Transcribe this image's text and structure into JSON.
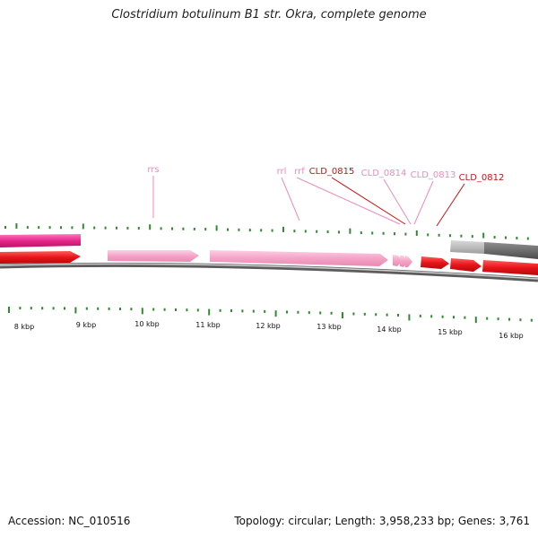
{
  "title": "Clostridium botulinum B1 str. Okra, complete genome",
  "footer": {
    "accession": "Accession: NC_010516",
    "summary": "Topology: circular; Length: 3,958,233 bp; Genes: 3,761"
  },
  "colors": {
    "tick": "#2e8b2e",
    "backbone": "#9a9a9a",
    "cds_red": "#e8141a",
    "rna_pink": "#f5a3c7",
    "gene_magenta": "#e8268a",
    "gray_feature": "#6d6d6d",
    "label_red": "#cc1111",
    "label_pink": "#f08aba"
  },
  "scale_labels": [
    "8 kbp",
    "9 kbp",
    "10 kbp",
    "11 kbp",
    "12 kbp",
    "13 kbp",
    "14 kbp",
    "15 kbp",
    "16 kbp"
  ],
  "gene_labels": [
    {
      "text": "rrs",
      "color": "pink"
    },
    {
      "text": "rrl",
      "color": "pink"
    },
    {
      "text": "rrf",
      "color": "pink"
    },
    {
      "text": "CLD_0815",
      "color": "red"
    },
    {
      "text": "CLD_0814",
      "color": "pink"
    },
    {
      "text": "CLD_0813",
      "color": "pink"
    },
    {
      "text": "CLD_0812",
      "color": "red"
    }
  ]
}
